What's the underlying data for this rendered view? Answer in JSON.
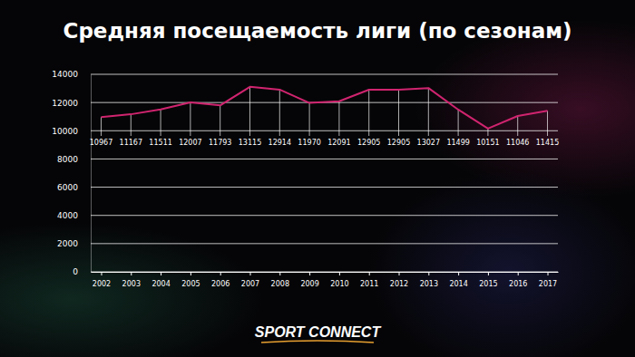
{
  "chart_data": {
    "type": "line",
    "title": "Средняя посещаемость лиги (по сезонам)",
    "categories": [
      "2002",
      "2003",
      "2004",
      "2005",
      "2006",
      "2007",
      "2008",
      "2009",
      "2010",
      "2011",
      "2012",
      "2013",
      "2014",
      "2015",
      "2016",
      "2017"
    ],
    "values": [
      10967,
      11167,
      11511,
      12007,
      11793,
      13115,
      12914,
      11970,
      12091,
      12905,
      12905,
      13027,
      11499,
      10151,
      11046,
      11415
    ],
    "color": "#d0246f",
    "ylim": [
      0,
      14000
    ],
    "yticks": [
      0,
      2000,
      4000,
      6000,
      8000,
      10000,
      12000,
      14000
    ],
    "grid": true,
    "data_labels": true,
    "annotations": [
      "SPORT CONNECT"
    ]
  }
}
